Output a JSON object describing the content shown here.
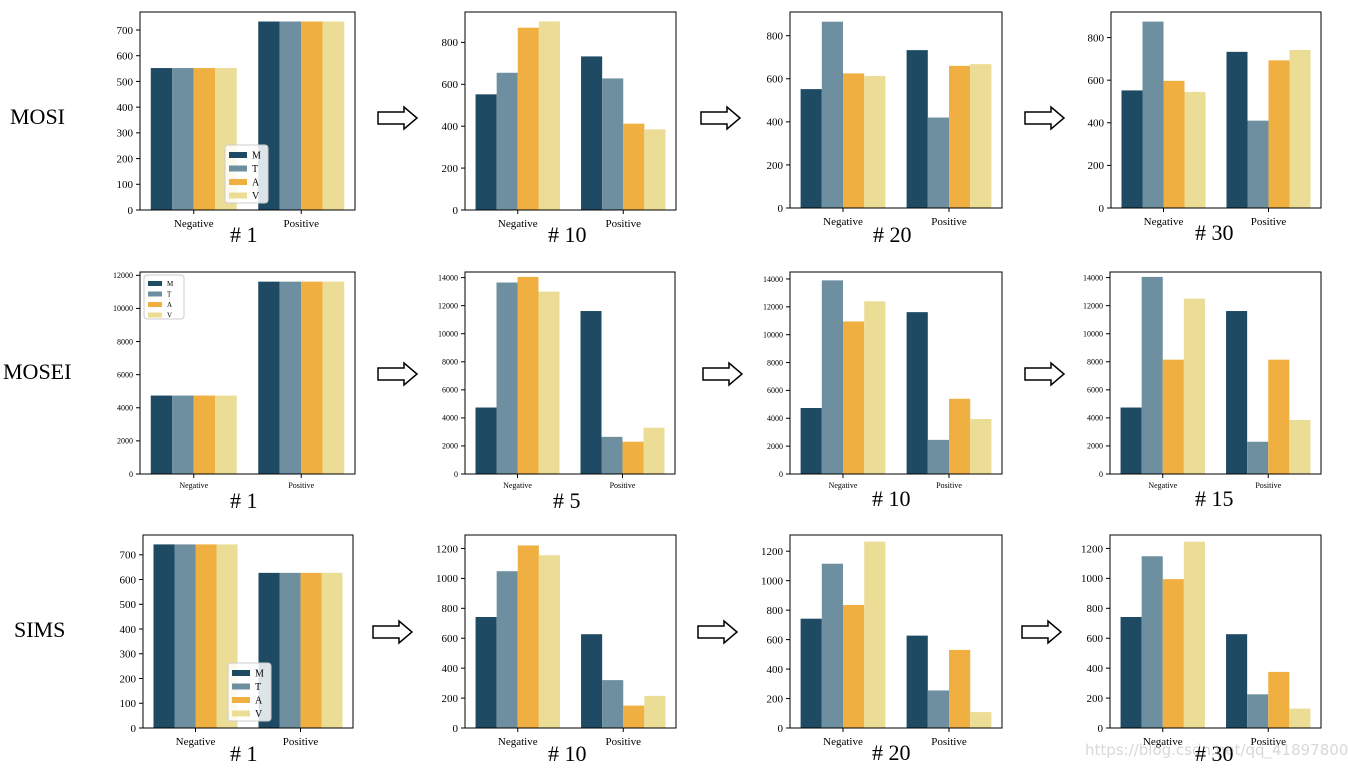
{
  "colors": {
    "M": "#1f4a63",
    "T": "#6d8fa0",
    "A": "#efb041",
    "V": "#ebdd96"
  },
  "legend": [
    "M",
    "T",
    "A",
    "V"
  ],
  "categories": [
    "Negative",
    "Positive"
  ],
  "rows": [
    {
      "label": "MOSI",
      "steps": [
        "# 1",
        "# 10",
        "# 20",
        "# 30"
      ]
    },
    {
      "label": "MOSEI",
      "steps": [
        "# 1",
        "# 5",
        "# 10",
        "# 15"
      ]
    },
    {
      "label": "SIMS",
      "steps": [
        "# 1",
        "# 10",
        "# 20",
        "# 30"
      ]
    }
  ],
  "watermark": "https://blog.csdn.net/qq_41897800",
  "chart_data": [
    {
      "type": "bar",
      "dataset": "MOSI",
      "step": "# 1",
      "categories": [
        "Negative",
        "Positive"
      ],
      "legend": true,
      "series": [
        {
          "name": "M",
          "values": [
            552,
            733
          ]
        },
        {
          "name": "T",
          "values": [
            552,
            733
          ]
        },
        {
          "name": "A",
          "values": [
            552,
            733
          ]
        },
        {
          "name": "V",
          "values": [
            552,
            733
          ]
        }
      ],
      "ylim": [
        0,
        770
      ],
      "yticks": [
        0,
        100,
        200,
        300,
        400,
        500,
        600,
        700
      ]
    },
    {
      "type": "bar",
      "dataset": "MOSI",
      "step": "# 10",
      "categories": [
        "Negative",
        "Positive"
      ],
      "series": [
        {
          "name": "M",
          "values": [
            552,
            733
          ]
        },
        {
          "name": "T",
          "values": [
            655,
            628
          ]
        },
        {
          "name": "A",
          "values": [
            870,
            412
          ]
        },
        {
          "name": "V",
          "values": [
            900,
            385
          ]
        }
      ],
      "ylim": [
        0,
        945
      ],
      "yticks": [
        0,
        200,
        400,
        600,
        800
      ]
    },
    {
      "type": "bar",
      "dataset": "MOSI",
      "step": "# 20",
      "categories": [
        "Negative",
        "Positive"
      ],
      "series": [
        {
          "name": "M",
          "values": [
            552,
            733
          ]
        },
        {
          "name": "T",
          "values": [
            865,
            420
          ]
        },
        {
          "name": "A",
          "values": [
            625,
            660
          ]
        },
        {
          "name": "V",
          "values": [
            613,
            668
          ]
        }
      ],
      "ylim": [
        0,
        910
      ],
      "yticks": [
        0,
        200,
        400,
        600,
        800
      ]
    },
    {
      "type": "bar",
      "dataset": "MOSI",
      "step": "# 30",
      "categories": [
        "Negative",
        "Positive"
      ],
      "series": [
        {
          "name": "M",
          "values": [
            552,
            733
          ]
        },
        {
          "name": "T",
          "values": [
            875,
            410
          ]
        },
        {
          "name": "A",
          "values": [
            597,
            693
          ]
        },
        {
          "name": "V",
          "values": [
            545,
            742
          ]
        }
      ],
      "ylim": [
        0,
        920
      ],
      "yticks": [
        0,
        200,
        400,
        600,
        800
      ]
    },
    {
      "type": "bar",
      "dataset": "MOSEI",
      "step": "# 1",
      "categories": [
        "Negative",
        "Positive"
      ],
      "legend": true,
      "series": [
        {
          "name": "M",
          "values": [
            4738,
            11618
          ]
        },
        {
          "name": "T",
          "values": [
            4738,
            11618
          ]
        },
        {
          "name": "A",
          "values": [
            4738,
            11618
          ]
        },
        {
          "name": "V",
          "values": [
            4738,
            11618
          ]
        }
      ],
      "ylim": [
        0,
        12200
      ],
      "yticks": [
        0,
        2000,
        4000,
        6000,
        8000,
        10000,
        12000
      ]
    },
    {
      "type": "bar",
      "dataset": "MOSEI",
      "step": "# 5",
      "categories": [
        "Negative",
        "Positive"
      ],
      "series": [
        {
          "name": "M",
          "values": [
            4738,
            11618
          ]
        },
        {
          "name": "T",
          "values": [
            13650,
            2650
          ]
        },
        {
          "name": "A",
          "values": [
            14050,
            2300
          ]
        },
        {
          "name": "V",
          "values": [
            13000,
            3300
          ]
        }
      ],
      "ylim": [
        0,
        14400
      ],
      "yticks": [
        0,
        2000,
        4000,
        6000,
        8000,
        10000,
        12000,
        14000
      ]
    },
    {
      "type": "bar",
      "dataset": "MOSEI",
      "step": "# 10",
      "categories": [
        "Negative",
        "Positive"
      ],
      "series": [
        {
          "name": "M",
          "values": [
            4738,
            11618
          ]
        },
        {
          "name": "T",
          "values": [
            13900,
            2450
          ]
        },
        {
          "name": "A",
          "values": [
            10950,
            5400
          ]
        },
        {
          "name": "V",
          "values": [
            12400,
            3950
          ]
        }
      ],
      "ylim": [
        0,
        14500
      ],
      "yticks": [
        0,
        2000,
        4000,
        6000,
        8000,
        10000,
        12000,
        14000
      ]
    },
    {
      "type": "bar",
      "dataset": "MOSEI",
      "step": "# 15",
      "categories": [
        "Negative",
        "Positive"
      ],
      "series": [
        {
          "name": "M",
          "values": [
            4738,
            11618
          ]
        },
        {
          "name": "T",
          "values": [
            14050,
            2300
          ]
        },
        {
          "name": "A",
          "values": [
            8150,
            8150
          ]
        },
        {
          "name": "V",
          "values": [
            12500,
            3850
          ]
        }
      ],
      "ylim": [
        0,
        14400
      ],
      "yticks": [
        0,
        2000,
        4000,
        6000,
        8000,
        10000,
        12000,
        14000
      ]
    },
    {
      "type": "bar",
      "dataset": "SIMS",
      "step": "# 1",
      "categories": [
        "Negative",
        "Positive"
      ],
      "legend": true,
      "series": [
        {
          "name": "M",
          "values": [
            742,
            627
          ]
        },
        {
          "name": "T",
          "values": [
            742,
            627
          ]
        },
        {
          "name": "A",
          "values": [
            742,
            627
          ]
        },
        {
          "name": "V",
          "values": [
            742,
            627
          ]
        }
      ],
      "ylim": [
        0,
        780
      ],
      "yticks": [
        0,
        100,
        200,
        300,
        400,
        500,
        600,
        700
      ]
    },
    {
      "type": "bar",
      "dataset": "SIMS",
      "step": "# 10",
      "categories": [
        "Negative",
        "Positive"
      ],
      "series": [
        {
          "name": "M",
          "values": [
            742,
            627
          ]
        },
        {
          "name": "T",
          "values": [
            1048,
            320
          ]
        },
        {
          "name": "A",
          "values": [
            1220,
            150
          ]
        },
        {
          "name": "V",
          "values": [
            1155,
            215
          ]
        }
      ],
      "ylim": [
        0,
        1290
      ],
      "yticks": [
        0,
        200,
        400,
        600,
        800,
        1000,
        1200
      ]
    },
    {
      "type": "bar",
      "dataset": "SIMS",
      "step": "# 20",
      "categories": [
        "Negative",
        "Positive"
      ],
      "series": [
        {
          "name": "M",
          "values": [
            742,
            627
          ]
        },
        {
          "name": "T",
          "values": [
            1115,
            255
          ]
        },
        {
          "name": "A",
          "values": [
            835,
            530
          ]
        },
        {
          "name": "V",
          "values": [
            1265,
            108
          ]
        }
      ],
      "ylim": [
        0,
        1310
      ],
      "yticks": [
        0,
        200,
        400,
        600,
        800,
        1000,
        1200
      ]
    },
    {
      "type": "bar",
      "dataset": "SIMS",
      "step": "# 30",
      "categories": [
        "Negative",
        "Positive"
      ],
      "series": [
        {
          "name": "M",
          "values": [
            742,
            627
          ]
        },
        {
          "name": "T",
          "values": [
            1148,
            225
          ]
        },
        {
          "name": "A",
          "values": [
            995,
            375
          ]
        },
        {
          "name": "V",
          "values": [
            1245,
            130
          ]
        }
      ],
      "ylim": [
        0,
        1290
      ],
      "yticks": [
        0,
        200,
        400,
        600,
        800,
        1000,
        1200
      ]
    }
  ]
}
